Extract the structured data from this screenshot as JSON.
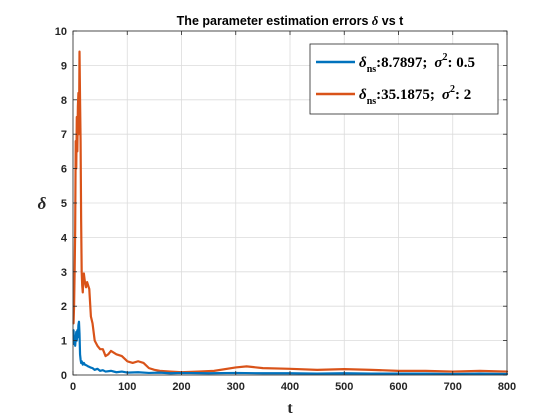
{
  "chart_data": {
    "type": "line",
    "title_parts": [
      "The parameter estimation errors ",
      "δ",
      " vs t"
    ],
    "xlabel": "t",
    "ylabel": "δ",
    "xlim": [
      0,
      800
    ],
    "ylim": [
      0,
      10
    ],
    "xticks": [
      0,
      100,
      200,
      300,
      400,
      500,
      600,
      700,
      800
    ],
    "yticks": [
      0,
      1,
      2,
      3,
      4,
      5,
      6,
      7,
      8,
      9,
      10
    ],
    "grid": true,
    "legend_position": "top-right",
    "series": [
      {
        "legend": {
          "symbol": "δ",
          "sub": "ns",
          "value": ":8.7897;",
          "sigma": "σ",
          "sup": "2",
          "param": ": 0.5"
        },
        "color": "#0072BD",
        "x": [
          1,
          2,
          3,
          4,
          5,
          6,
          7,
          8,
          9,
          10,
          11,
          12,
          13,
          14,
          15,
          16,
          18,
          20,
          22,
          25,
          28,
          32,
          36,
          40,
          45,
          50,
          55,
          60,
          70,
          80,
          90,
          100,
          120,
          140,
          160,
          180,
          200,
          250,
          300,
          350,
          400,
          450,
          500,
          550,
          600,
          650,
          700,
          750,
          800
        ],
        "y": [
          1.3,
          0.9,
          1.1,
          0.85,
          1.05,
          1.25,
          1.0,
          1.3,
          1.1,
          1.45,
          1.55,
          1.2,
          0.6,
          0.45,
          0.35,
          0.4,
          0.3,
          0.35,
          0.3,
          0.28,
          0.25,
          0.22,
          0.2,
          0.15,
          0.18,
          0.12,
          0.14,
          0.1,
          0.12,
          0.08,
          0.1,
          0.07,
          0.08,
          0.06,
          0.07,
          0.05,
          0.06,
          0.05,
          0.06,
          0.05,
          0.05,
          0.04,
          0.05,
          0.04,
          0.04,
          0.04,
          0.03,
          0.04,
          0.03
        ]
      },
      {
        "legend": {
          "symbol": "δ",
          "sub": "ns",
          "value": ":35.1875;",
          "sigma": "σ",
          "sup": "2",
          "param": ": 2"
        },
        "color": "#D95319",
        "x": [
          1,
          2,
          3,
          4,
          5,
          6,
          7,
          8,
          9,
          10,
          11,
          12,
          13,
          14,
          15,
          16,
          17,
          18,
          19,
          20,
          22,
          24,
          26,
          28,
          30,
          33,
          36,
          40,
          45,
          50,
          55,
          60,
          65,
          70,
          80,
          90,
          100,
          110,
          120,
          130,
          140,
          150,
          160,
          180,
          200,
          230,
          260,
          300,
          320,
          350,
          400,
          450,
          500,
          550,
          600,
          650,
          700,
          750,
          800
        ],
        "y": [
          1.5,
          2.0,
          3.0,
          4.2,
          6.8,
          6.0,
          7.5,
          6.5,
          7.8,
          8.2,
          7.0,
          9.4,
          8.0,
          6.8,
          4.5,
          3.0,
          2.6,
          2.4,
          2.8,
          2.95,
          2.7,
          2.55,
          2.7,
          2.6,
          2.5,
          1.7,
          1.5,
          1.0,
          0.85,
          0.75,
          0.75,
          0.55,
          0.6,
          0.7,
          0.6,
          0.55,
          0.4,
          0.35,
          0.4,
          0.35,
          0.2,
          0.15,
          0.12,
          0.1,
          0.08,
          0.1,
          0.12,
          0.22,
          0.25,
          0.2,
          0.18,
          0.15,
          0.17,
          0.15,
          0.12,
          0.12,
          0.1,
          0.12,
          0.1
        ]
      }
    ]
  }
}
